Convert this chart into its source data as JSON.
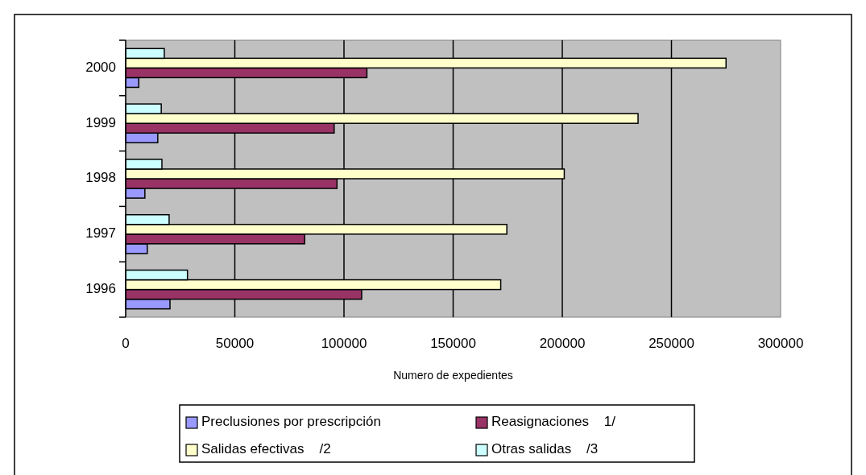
{
  "chart_data": {
    "type": "bar",
    "orientation": "horizontal",
    "xlabel": "Numero de expedientes",
    "categories": [
      "2000",
      "1999",
      "1998",
      "1997",
      "1996"
    ],
    "series": [
      {
        "name": "Preclusiones por prescripción",
        "color": "#9999ff",
        "values": [
          6000,
          14700,
          8800,
          9900,
          20300
        ]
      },
      {
        "name": "Reasignaciones    1/",
        "color": "#993366",
        "values": [
          110500,
          95500,
          96800,
          82000,
          108100
        ]
      },
      {
        "name": "Salidas efectivas    /2",
        "color": "#ffffcc",
        "values": [
          275000,
          234700,
          200900,
          174600,
          171800
        ]
      },
      {
        "name": "Otras salidas    /3",
        "color": "#ccffff",
        "values": [
          17700,
          16300,
          16600,
          19900,
          28300
        ]
      }
    ],
    "xlim": [
      0,
      300000
    ],
    "xticks": [
      0,
      50000,
      100000,
      150000,
      200000,
      250000,
      300000
    ],
    "grid": "x",
    "legend": "bottom"
  }
}
